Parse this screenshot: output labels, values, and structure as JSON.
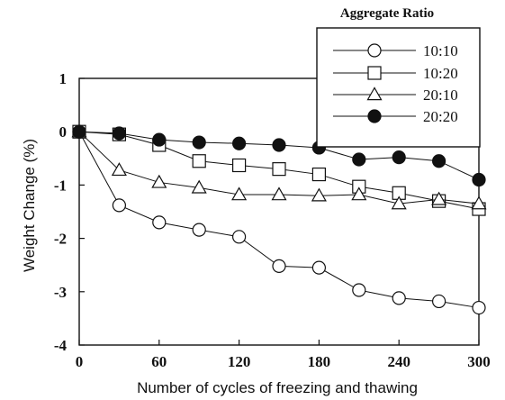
{
  "chart_data": {
    "type": "line",
    "xlabel": "Number of cycles of freezing and thawing",
    "ylabel": "Weight Change (%)",
    "xlim": [
      0,
      300
    ],
    "ylim": [
      -4,
      1
    ],
    "xticks": [
      0,
      60,
      120,
      180,
      240,
      300
    ],
    "xtick_labels": [
      "0",
      "60",
      "120",
      "180",
      "240",
      "300"
    ],
    "yticks": [
      1,
      0,
      -1,
      -2,
      -3,
      -4
    ],
    "ytick_labels": [
      "1",
      "0",
      "-1",
      "-2",
      "-3",
      "-4"
    ],
    "grid": false,
    "legend": {
      "title": "Aggregate Ratio",
      "placement": "top-right"
    },
    "x": [
      0,
      30,
      60,
      90,
      120,
      150,
      180,
      210,
      240,
      270,
      300
    ],
    "series": [
      {
        "name": "10:10",
        "marker": "circle-open",
        "values": [
          0.0,
          -1.38,
          -1.7,
          -1.84,
          -1.97,
          -2.52,
          -2.55,
          -2.97,
          -3.12,
          -3.18,
          -3.3
        ]
      },
      {
        "name": "10:20",
        "marker": "square-open",
        "values": [
          0.0,
          -0.05,
          -0.25,
          -0.55,
          -0.63,
          -0.7,
          -0.8,
          -1.03,
          -1.15,
          -1.3,
          -1.45
        ]
      },
      {
        "name": "20:10",
        "marker": "triangle-open",
        "values": [
          0.0,
          -0.72,
          -0.95,
          -1.05,
          -1.18,
          -1.18,
          -1.2,
          -1.18,
          -1.35,
          -1.27,
          -1.35
        ]
      },
      {
        "name": "20:20",
        "marker": "circle-filled",
        "values": [
          0.0,
          -0.03,
          -0.15,
          -0.2,
          -0.22,
          -0.25,
          -0.3,
          -0.52,
          -0.48,
          -0.55,
          -0.9
        ]
      }
    ]
  },
  "colors": {
    "ink": "#111111",
    "background": "#ffffff"
  }
}
